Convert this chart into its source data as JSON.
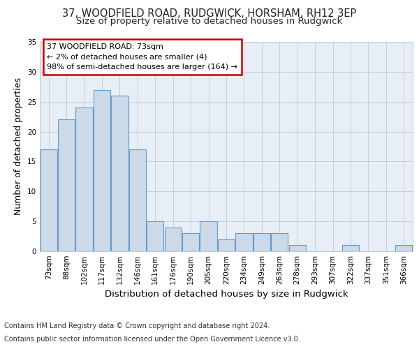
{
  "title_line1": "37, WOODFIELD ROAD, RUDGWICK, HORSHAM, RH12 3EP",
  "title_line2": "Size of property relative to detached houses in Rudgwick",
  "xlabel": "Distribution of detached houses by size in Rudgwick",
  "ylabel": "Number of detached properties",
  "bar_labels": [
    "73sqm",
    "88sqm",
    "102sqm",
    "117sqm",
    "132sqm",
    "146sqm",
    "161sqm",
    "176sqm",
    "190sqm",
    "205sqm",
    "220sqm",
    "234sqm",
    "249sqm",
    "263sqm",
    "278sqm",
    "293sqm",
    "307sqm",
    "322sqm",
    "337sqm",
    "351sqm",
    "366sqm"
  ],
  "bar_values": [
    17,
    22,
    24,
    27,
    26,
    17,
    5,
    4,
    3,
    5,
    2,
    3,
    3,
    3,
    1,
    0,
    0,
    1,
    0,
    0,
    1
  ],
  "bar_color": "#ccd9e8",
  "bar_edge_color": "#6699cc",
  "annotation_text": "37 WOODFIELD ROAD: 73sqm\n← 2% of detached houses are smaller (4)\n98% of semi-detached houses are larger (164) →",
  "annotation_box_color": "#ffffff",
  "annotation_box_edge_color": "#cc0000",
  "ylim": [
    0,
    35
  ],
  "yticks": [
    0,
    5,
    10,
    15,
    20,
    25,
    30,
    35
  ],
  "bg_color": "#e8eef5",
  "grid_color": "#c0c8d8",
  "footer_line1": "Contains HM Land Registry data © Crown copyright and database right 2024.",
  "footer_line2": "Contains public sector information licensed under the Open Government Licence v3.0.",
  "title_fontsize": 10.5,
  "subtitle_fontsize": 9.5,
  "axis_label_fontsize": 9,
  "tick_fontsize": 7.5,
  "annotation_fontsize": 8,
  "footer_fontsize": 7
}
